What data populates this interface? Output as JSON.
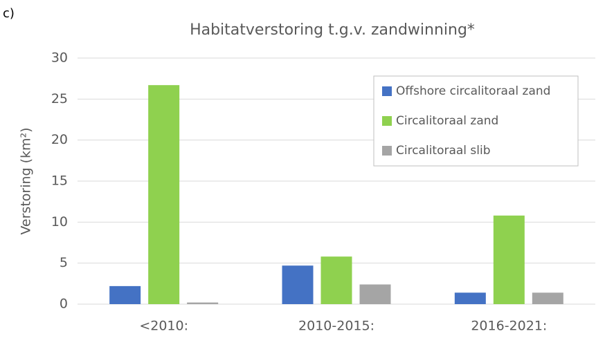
{
  "panel_label": "c)",
  "chart_data": {
    "type": "bar",
    "title": "Habitatverstoring t.g.v. zandwinning*",
    "ylabel": "Verstoring (km²)",
    "categories": [
      "<2010:",
      "2010-2015:",
      "2016-2021:"
    ],
    "series": [
      {
        "name": "Offshore circalitoraal zand",
        "color": "#4472c4",
        "values": [
          2.2,
          4.7,
          1.4
        ]
      },
      {
        "name": "Circalitoraal zand",
        "color": "#8fd14f",
        "values": [
          26.7,
          5.8,
          10.8
        ]
      },
      {
        "name": "Circalitoraal slib",
        "color": "#a5a5a5",
        "values": [
          0.2,
          2.4,
          1.4
        ]
      }
    ],
    "ylim": [
      0,
      30
    ],
    "yticks": [
      0,
      5,
      10,
      15,
      20,
      25,
      30
    ],
    "grid": true,
    "legend": "upper right"
  }
}
